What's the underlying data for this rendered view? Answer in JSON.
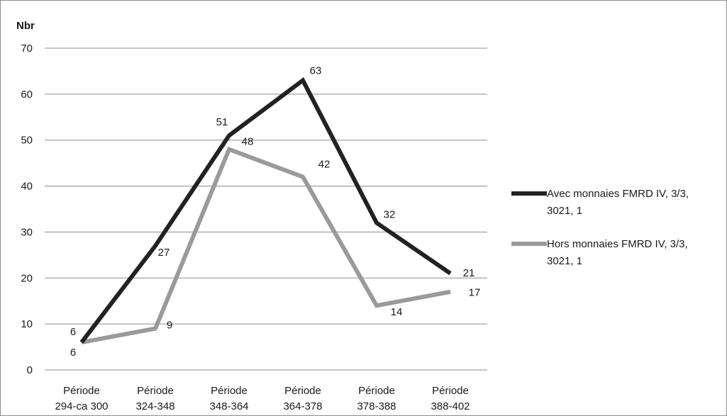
{
  "chart_data": {
    "type": "line",
    "title": "",
    "xlabel": "",
    "ylabel": "Nbr",
    "ylim": [
      0,
      70
    ],
    "y_ticks": [
      0,
      10,
      20,
      30,
      40,
      50,
      60,
      70
    ],
    "grid": "horizontal",
    "legend_position": "right",
    "categories": [
      [
        "Période",
        "294-ca 300"
      ],
      [
        "Période",
        "324-348"
      ],
      [
        "Période",
        "348-364"
      ],
      [
        "Période",
        "364-378"
      ],
      [
        "Période",
        "378-388"
      ],
      [
        "Période",
        "388-402"
      ]
    ],
    "series": [
      {
        "name_lines": [
          "Avec monnaies FMRD IV, 3/3,",
          "3021, 1"
        ],
        "values": [
          6,
          27,
          51,
          63,
          32,
          21
        ],
        "color": "#222222"
      },
      {
        "name_lines": [
          "Hors monnaies FMRD IV, 3/3,",
          "3021, 1"
        ],
        "values": [
          6,
          9,
          48,
          42,
          14,
          17
        ],
        "color": "#9a9a9a"
      }
    ]
  }
}
